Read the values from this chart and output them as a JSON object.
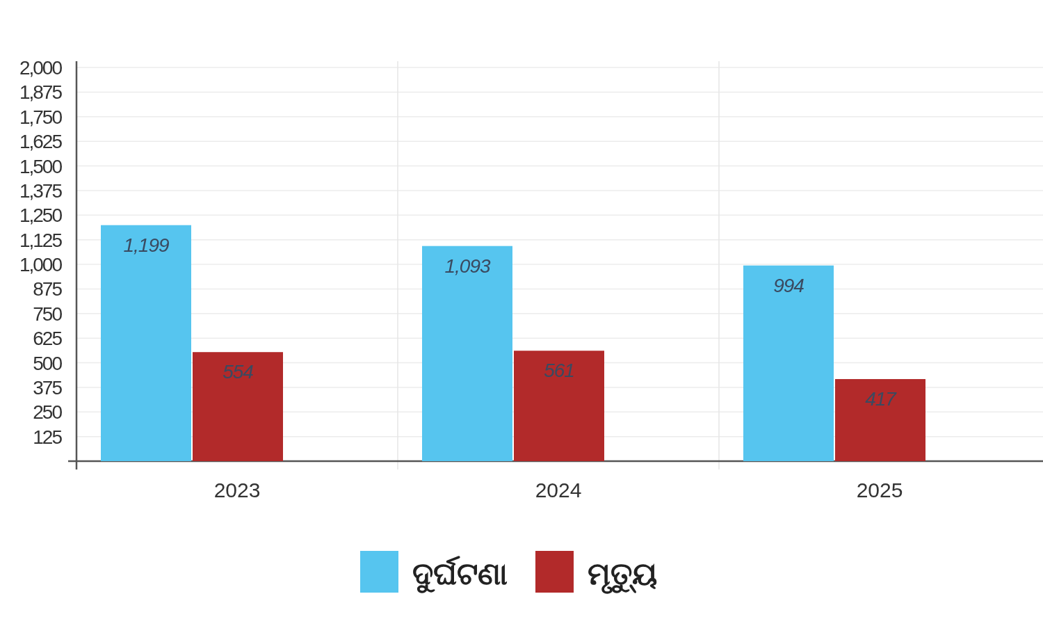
{
  "chart_data": {
    "type": "bar",
    "categories": [
      "2023",
      "2024",
      "2025"
    ],
    "series": [
      {
        "name": "ଦୁର୍ଘଟଣା",
        "color": "#56c5ef",
        "values": [
          1199,
          1093,
          994
        ],
        "value_labels": [
          "1,199",
          "1,093",
          "994"
        ]
      },
      {
        "name": "ମୃତ୍ୟୁ",
        "color": "#b22a2a",
        "values": [
          554,
          561,
          417
        ],
        "value_labels": [
          "554",
          "561",
          "417"
        ]
      }
    ],
    "ylim": [
      0,
      2000
    ],
    "yticks": [
      125,
      250,
      375,
      500,
      625,
      750,
      875,
      {
        "value": 1000,
        "label": "1,000"
      },
      {
        "value": 1125,
        "label": "1,125"
      },
      {
        "value": 1250,
        "label": "1,250"
      },
      {
        "value": 1375,
        "label": "1,375"
      },
      {
        "value": 1500,
        "label": "1,500"
      },
      {
        "value": 1625,
        "label": "1,625"
      },
      {
        "value": 1750,
        "label": "1,750"
      },
      {
        "value": 1875,
        "label": "1,875"
      },
      {
        "value": 2000,
        "label": "2,000"
      }
    ],
    "grid": true,
    "legend": "bottom"
  }
}
